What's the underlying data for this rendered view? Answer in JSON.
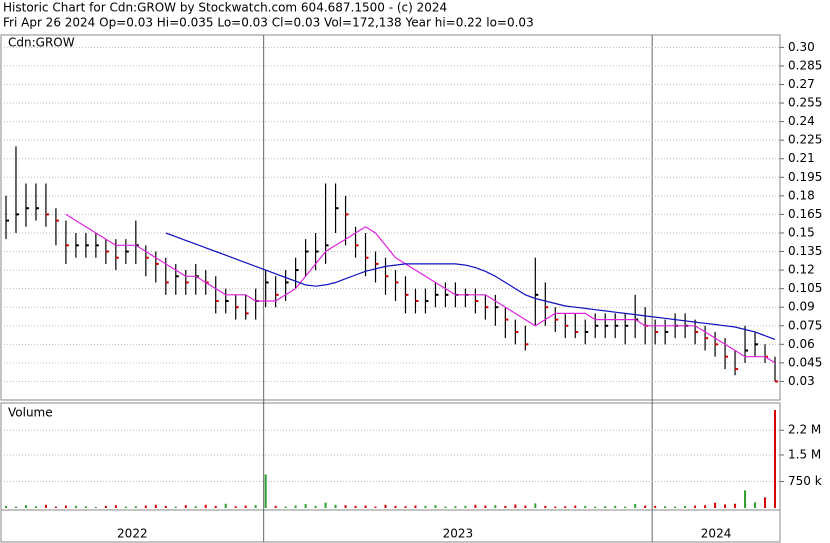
{
  "chart_data": [
    {
      "type": "hlc",
      "title": "Historic Chart for Cdn:GROW by Stockwatch.com 604.687.1500 - (c) 2024",
      "subtitle": "Fri Apr 26 2024  Op=0.03  Hi=0.035  Lo=0.03  Cl=0.03  Vol=172,138  Year hi=0.22  lo=0.03",
      "label": "Cdn:GROW",
      "high": [
        0.18,
        0.22,
        0.19,
        0.19,
        0.19,
        0.17,
        0.16,
        0.15,
        0.15,
        0.15,
        0.145,
        0.145,
        0.145,
        0.16,
        0.14,
        0.135,
        0.13,
        0.125,
        0.12,
        0.125,
        0.12,
        0.115,
        0.105,
        0.1,
        0.1,
        0.105,
        0.12,
        0.115,
        0.12,
        0.13,
        0.145,
        0.15,
        0.19,
        0.19,
        0.18,
        0.155,
        0.15,
        0.135,
        0.13,
        0.12,
        0.115,
        0.105,
        0.105,
        0.11,
        0.11,
        0.11,
        0.105,
        0.105,
        0.1,
        0.1,
        0.09,
        0.08,
        0.075,
        0.13,
        0.11,
        0.09,
        0.085,
        0.085,
        0.08,
        0.085,
        0.085,
        0.085,
        0.085,
        0.1,
        0.09,
        0.08,
        0.08,
        0.085,
        0.085,
        0.08,
        0.075,
        0.07,
        0.065,
        0.055,
        0.075,
        0.07,
        0.06,
        0.05
      ],
      "low": [
        0.145,
        0.15,
        0.155,
        0.16,
        0.155,
        0.14,
        0.125,
        0.13,
        0.13,
        0.13,
        0.125,
        0.12,
        0.125,
        0.125,
        0.115,
        0.11,
        0.1,
        0.1,
        0.1,
        0.1,
        0.1,
        0.085,
        0.085,
        0.08,
        0.08,
        0.08,
        0.09,
        0.09,
        0.095,
        0.105,
        0.115,
        0.12,
        0.125,
        0.15,
        0.14,
        0.13,
        0.115,
        0.11,
        0.1,
        0.095,
        0.085,
        0.085,
        0.085,
        0.09,
        0.09,
        0.09,
        0.09,
        0.085,
        0.08,
        0.075,
        0.065,
        0.06,
        0.055,
        0.075,
        0.075,
        0.07,
        0.065,
        0.065,
        0.06,
        0.065,
        0.065,
        0.065,
        0.06,
        0.065,
        0.06,
        0.06,
        0.06,
        0.065,
        0.065,
        0.06,
        0.055,
        0.05,
        0.04,
        0.035,
        0.045,
        0.05,
        0.045,
        0.03
      ],
      "close": [
        0.16,
        0.165,
        0.17,
        0.17,
        0.165,
        0.16,
        0.14,
        0.14,
        0.14,
        0.14,
        0.135,
        0.13,
        0.135,
        0.14,
        0.13,
        0.125,
        0.11,
        0.115,
        0.11,
        0.115,
        0.11,
        0.095,
        0.095,
        0.09,
        0.085,
        0.095,
        0.11,
        0.1,
        0.11,
        0.12,
        0.135,
        0.135,
        0.14,
        0.17,
        0.165,
        0.14,
        0.13,
        0.125,
        0.115,
        0.11,
        0.1,
        0.095,
        0.095,
        0.1,
        0.1,
        0.1,
        0.1,
        0.095,
        0.09,
        0.09,
        0.08,
        0.07,
        0.06,
        0.1,
        0.09,
        0.08,
        0.075,
        0.07,
        0.07,
        0.075,
        0.075,
        0.075,
        0.075,
        0.08,
        0.075,
        0.07,
        0.07,
        0.075,
        0.075,
        0.07,
        0.065,
        0.06,
        0.05,
        0.04,
        0.055,
        0.06,
        0.05,
        0.03
      ],
      "ma_short": {
        "color": "#e020e0",
        "values": [
          null,
          null,
          null,
          null,
          null,
          null,
          0.165,
          0.16,
          0.155,
          0.15,
          0.145,
          0.14,
          0.14,
          0.14,
          0.135,
          0.13,
          0.125,
          0.12,
          0.115,
          0.115,
          0.11,
          0.105,
          0.1,
          0.1,
          0.1,
          0.095,
          0.095,
          0.095,
          0.1,
          0.105,
          0.115,
          0.125,
          0.135,
          0.14,
          0.145,
          0.15,
          0.155,
          0.15,
          0.14,
          0.13,
          0.125,
          0.12,
          0.115,
          0.11,
          0.105,
          0.1,
          0.1,
          0.1,
          0.1,
          0.095,
          0.09,
          0.085,
          0.08,
          0.075,
          0.08,
          0.085,
          0.085,
          0.085,
          0.085,
          0.08,
          0.08,
          0.08,
          0.08,
          0.08,
          0.075,
          0.075,
          0.075,
          0.075,
          0.075,
          0.075,
          0.07,
          0.065,
          0.06,
          0.055,
          0.05,
          0.05,
          0.05,
          0.045
        ]
      },
      "ma_long": {
        "color": "#1010c0",
        "values": [
          null,
          null,
          null,
          null,
          null,
          null,
          null,
          null,
          null,
          null,
          null,
          null,
          null,
          null,
          null,
          null,
          0.15,
          0.147,
          0.144,
          0.141,
          0.138,
          0.135,
          0.132,
          0.129,
          0.126,
          0.123,
          0.12,
          0.117,
          0.114,
          0.111,
          0.108,
          0.107,
          0.108,
          0.11,
          0.113,
          0.116,
          0.119,
          0.121,
          0.123,
          0.124,
          0.125,
          0.125,
          0.125,
          0.125,
          0.125,
          0.125,
          0.124,
          0.122,
          0.119,
          0.115,
          0.11,
          0.105,
          0.1,
          0.097,
          0.095,
          0.093,
          0.091,
          0.09,
          0.089,
          0.088,
          0.087,
          0.086,
          0.085,
          0.084,
          0.083,
          0.082,
          0.081,
          0.08,
          0.079,
          0.078,
          0.077,
          0.076,
          0.075,
          0.074,
          0.072,
          0.07,
          0.067,
          0.064
        ]
      },
      "up_color": "#000000",
      "down_color": "#d40000",
      "ylim": [
        0.015,
        0.31
      ],
      "yticks": [
        {
          "value": 0.3,
          "label": "0.30"
        },
        0.285,
        0.27,
        0.255,
        0.24,
        0.225,
        0.21,
        0.195,
        0.18,
        0.165,
        0.15,
        0.135,
        0.12,
        0.105,
        0.09,
        0.075,
        0.06,
        0.045,
        0.03
      ],
      "xlim": [
        0,
        78
      ],
      "xticks": [
        {
          "value": 0,
          "label": "2022"
        },
        {
          "value": 26.3,
          "label": "2023"
        },
        {
          "value": 65.2,
          "label": "2024"
        }
      ],
      "grid": true
    },
    {
      "type": "bar",
      "title": "Volume",
      "values": [
        60000,
        40000,
        80000,
        50000,
        90000,
        40000,
        70000,
        60000,
        50000,
        30000,
        60000,
        80000,
        40000,
        50000,
        70000,
        90000,
        60000,
        40000,
        80000,
        50000,
        90000,
        60000,
        120000,
        50000,
        70000,
        80000,
        950000,
        60000,
        40000,
        70000,
        110000,
        60000,
        150000,
        90000,
        80000,
        60000,
        70000,
        40000,
        90000,
        60000,
        50000,
        70000,
        60000,
        80000,
        40000,
        50000,
        60000,
        90000,
        70000,
        80000,
        60000,
        100000,
        70000,
        130000,
        60000,
        40000,
        50000,
        70000,
        60000,
        40000,
        50000,
        60000,
        40000,
        110000,
        70000,
        60000,
        50000,
        40000,
        60000,
        70000,
        80000,
        150000,
        100000,
        120000,
        500000,
        160000,
        300000,
        2770000
      ],
      "up_color": "#2ca02c",
      "down_color": "#d40000",
      "ylim": [
        0,
        2970000
      ],
      "yticks": [
        {
          "value": 2200000,
          "label": "2.2 M"
        },
        {
          "value": 1500000,
          "label": "1.5 M"
        },
        {
          "value": 750000,
          "label": "750 k"
        }
      ],
      "grid": true
    }
  ]
}
